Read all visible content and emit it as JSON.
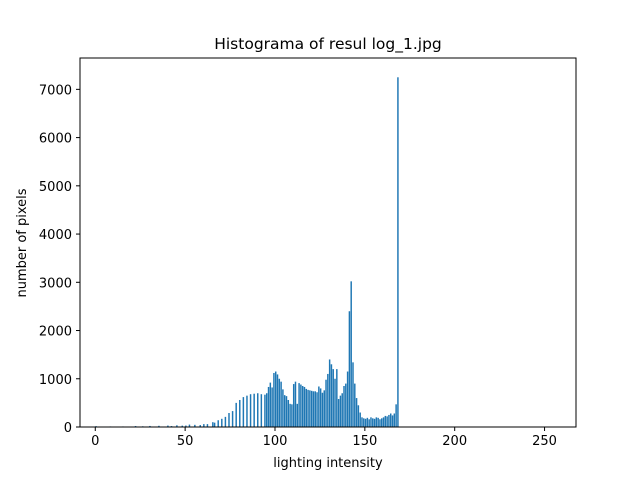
{
  "chart_data": {
    "type": "bar",
    "title": "Histograma  of resul log_1.jpg",
    "xlabel": "lighting intensity",
    "ylabel": "number of pixels",
    "xlim": [
      -8.5,
      267.5
    ],
    "ylim": [
      0,
      7650
    ],
    "xticks": [
      "0",
      "50",
      "100",
      "150",
      "200",
      "250"
    ],
    "yticks": [
      "0",
      "1000",
      "2000",
      "3000",
      "4000",
      "5000",
      "6000",
      "7000"
    ],
    "grid": false,
    "legend": "none",
    "bar_color": "#1f77b4",
    "series": [
      {
        "x": [
          0,
          8,
          15,
          22,
          26,
          30,
          35,
          40,
          42,
          45,
          48,
          50,
          52,
          55,
          58,
          60,
          62,
          65,
          66,
          68,
          70,
          72,
          74,
          76,
          78,
          80,
          82,
          84,
          86,
          88,
          90,
          92,
          94,
          95,
          96,
          97,
          98,
          99,
          100,
          101,
          102,
          103,
          104,
          105,
          106,
          107,
          108,
          109,
          110,
          111,
          112,
          113,
          114,
          115,
          116,
          117,
          118,
          119,
          120,
          121,
          122,
          123,
          124,
          125,
          126,
          127,
          128,
          129,
          130,
          131,
          132,
          133,
          134,
          135,
          136,
          137,
          138,
          139,
          140,
          141,
          142,
          143,
          144,
          145,
          146,
          147,
          148,
          149,
          150,
          151,
          152,
          153,
          154,
          155,
          156,
          157,
          158,
          159,
          160,
          161,
          162,
          163,
          164,
          165,
          166,
          167,
          168
        ],
        "values": [
          18,
          12,
          12,
          20,
          15,
          22,
          25,
          30,
          20,
          35,
          28,
          30,
          50,
          45,
          40,
          60,
          60,
          100,
          90,
          140,
          170,
          210,
          290,
          330,
          500,
          560,
          620,
          650,
          680,
          690,
          700,
          680,
          670,
          700,
          830,
          920,
          820,
          1120,
          1150,
          1090,
          1000,
          940,
          780,
          660,
          640,
          560,
          480,
          470,
          890,
          940,
          480,
          910,
          880,
          850,
          830,
          790,
          770,
          760,
          750,
          740,
          740,
          720,
          840,
          800,
          710,
          760,
          980,
          1100,
          1400,
          1300,
          1200,
          1000,
          1200,
          580,
          650,
          700,
          850,
          900,
          1150,
          2400,
          3020,
          1340,
          900,
          600,
          450,
          300,
          200,
          180,
          170,
          190,
          160,
          200,
          180,
          170,
          200,
          190,
          160,
          180,
          200,
          230,
          220,
          250,
          280,
          240,
          280,
          470,
          7250
        ]
      }
    ]
  }
}
